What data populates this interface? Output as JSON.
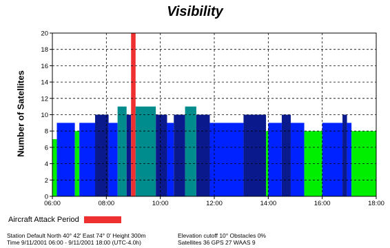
{
  "chart_data": {
    "type": "bar",
    "title": "Visibility",
    "xlabel": "",
    "ylabel": "Number of Satellites",
    "x_ticks": [
      "06:00",
      "08:00",
      "10:00",
      "12:00",
      "14:00",
      "16:00",
      "18:00"
    ],
    "xlim": [
      "06:00",
      "18:00"
    ],
    "ylim": [
      0,
      20
    ],
    "y_ticks": [
      0,
      2,
      4,
      6,
      8,
      10,
      12,
      14,
      16,
      18,
      20
    ],
    "grid": true,
    "series_colors": {
      "green": "#00ee00",
      "blue": "#0022ff",
      "navy": "#0a1a8c",
      "teal": "#008c8c",
      "red": "#ee3030"
    },
    "segments": [
      {
        "start": "06:00",
        "end": "06:10",
        "value": 7,
        "color": "green"
      },
      {
        "start": "06:10",
        "end": "06:50",
        "value": 9,
        "color": "blue"
      },
      {
        "start": "06:50",
        "end": "07:00",
        "value": 8,
        "color": "green"
      },
      {
        "start": "07:00",
        "end": "07:35",
        "value": 9,
        "color": "blue"
      },
      {
        "start": "07:35",
        "end": "08:05",
        "value": 10,
        "color": "navy"
      },
      {
        "start": "08:05",
        "end": "08:25",
        "value": 9,
        "color": "blue"
      },
      {
        "start": "08:25",
        "end": "08:45",
        "value": 11,
        "color": "teal"
      },
      {
        "start": "08:45",
        "end": "08:55",
        "value": 10,
        "color": "navy"
      },
      {
        "start": "08:55",
        "end": "09:05",
        "value": 20,
        "color": "red"
      },
      {
        "start": "09:05",
        "end": "09:50",
        "value": 11,
        "color": "teal"
      },
      {
        "start": "09:50",
        "end": "10:15",
        "value": 10,
        "color": "navy"
      },
      {
        "start": "10:15",
        "end": "10:30",
        "value": 9,
        "color": "blue"
      },
      {
        "start": "10:30",
        "end": "10:55",
        "value": 10,
        "color": "navy"
      },
      {
        "start": "10:55",
        "end": "11:20",
        "value": 11,
        "color": "teal"
      },
      {
        "start": "11:20",
        "end": "11:50",
        "value": 10,
        "color": "navy"
      },
      {
        "start": "11:50",
        "end": "13:05",
        "value": 9,
        "color": "blue"
      },
      {
        "start": "13:05",
        "end": "13:55",
        "value": 10,
        "color": "navy"
      },
      {
        "start": "13:55",
        "end": "14:00",
        "value": 8,
        "color": "green"
      },
      {
        "start": "14:00",
        "end": "14:30",
        "value": 9,
        "color": "blue"
      },
      {
        "start": "14:30",
        "end": "14:50",
        "value": 10,
        "color": "navy"
      },
      {
        "start": "14:50",
        "end": "15:20",
        "value": 9,
        "color": "blue"
      },
      {
        "start": "15:20",
        "end": "16:00",
        "value": 8,
        "color": "green"
      },
      {
        "start": "16:00",
        "end": "16:45",
        "value": 9,
        "color": "blue"
      },
      {
        "start": "16:45",
        "end": "16:55",
        "value": 10,
        "color": "navy"
      },
      {
        "start": "16:55",
        "end": "17:05",
        "value": 9,
        "color": "blue"
      },
      {
        "start": "17:05",
        "end": "18:00",
        "value": 8,
        "color": "green"
      }
    ]
  },
  "legend": {
    "label": "Aircraft Attack Period",
    "color": "#ee3030"
  },
  "footer": {
    "left_line1": "Station Default  North 40° 42'   East 74° 0'   Height 300m",
    "left_line2": "Time 9/11/2001 06:00 -  9/11/2001 18:00 (UTC-4.0h)",
    "right_line1": "Elevation cutoff 10°  Obstacles 0%",
    "right_line2": "Satellites 36  GPS 27  WAAS 9"
  }
}
